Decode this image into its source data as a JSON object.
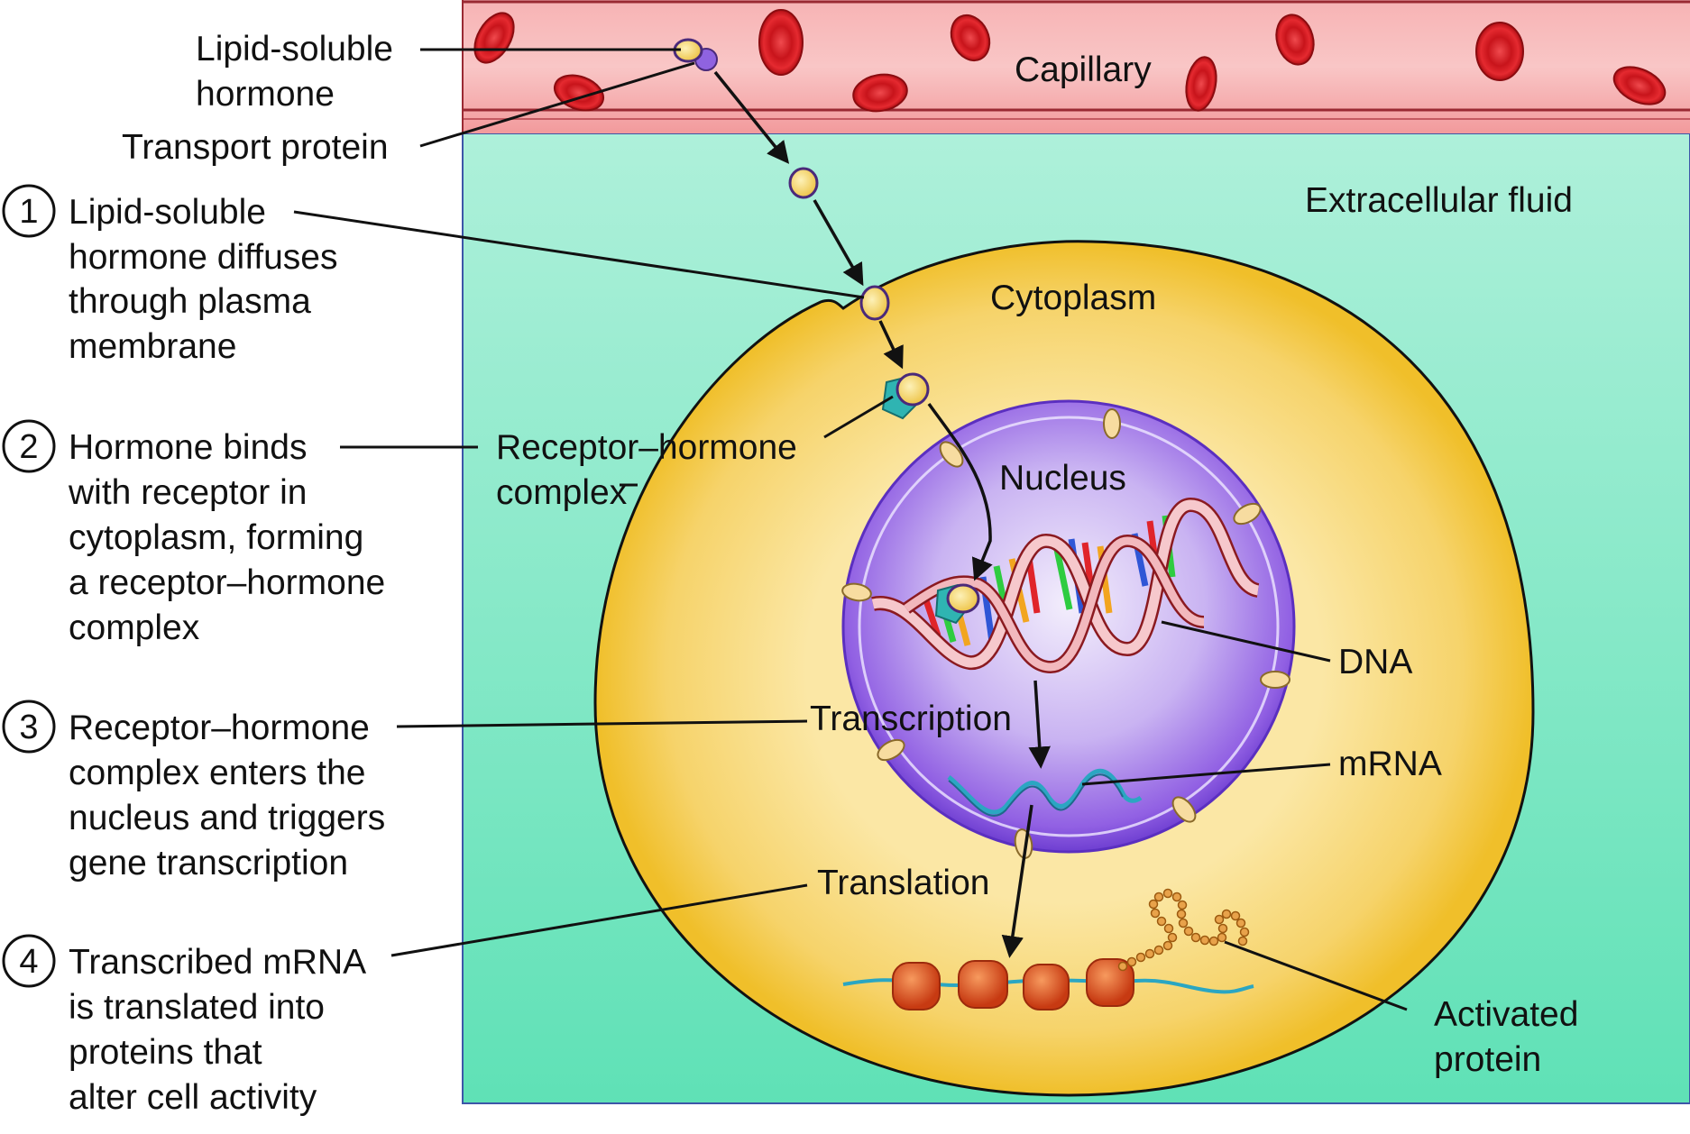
{
  "colors": {
    "capillary": "#f5a3a5",
    "capillary_edge": "#9a2a33",
    "rbc": "#d8191f",
    "extracellular_fluid": "#5fe1b6",
    "cytoplasm": "#f2c531",
    "nucleus": "#7a47d8",
    "hormone": "#f5dd76",
    "transport_protein": "#8f63e0",
    "receptor": "#2fb4b2",
    "ribosome": "#e2491b",
    "protein_bead": "#e8a24a"
  },
  "labels": {
    "capillary": "Capillary",
    "extracellular_fluid": "Extracellular fluid",
    "cytoplasm": "Cytoplasm",
    "nucleus": "Nucleus",
    "lipid_soluble_hormone_line1": "Lipid-soluble",
    "lipid_soluble_hormone_line2": "hormone",
    "transport_protein": "Transport protein",
    "receptor_complex_line1": "Receptor–hormone",
    "receptor_complex_line2": "complex",
    "dna": "DNA",
    "transcription": "Transcription",
    "mrna": "mRNA",
    "translation": "Translation",
    "activated_protein_line1": "Activated",
    "activated_protein_line2": "protein"
  },
  "steps": [
    {
      "number": "1",
      "lines": [
        "Lipid-soluble",
        "hormone diffuses",
        "through plasma",
        "membrane"
      ]
    },
    {
      "number": "2",
      "lines": [
        "Hormone binds",
        "with receptor in",
        "cytoplasm, forming",
        "a receptor–hormone",
        "complex"
      ]
    },
    {
      "number": "3",
      "lines": [
        "Receptor–hormone",
        "complex enters the",
        "nucleus and triggers",
        "gene transcription"
      ]
    },
    {
      "number": "4",
      "lines": [
        "Transcribed mRNA",
        "is translated into",
        "proteins that",
        "alter cell activity"
      ]
    }
  ]
}
